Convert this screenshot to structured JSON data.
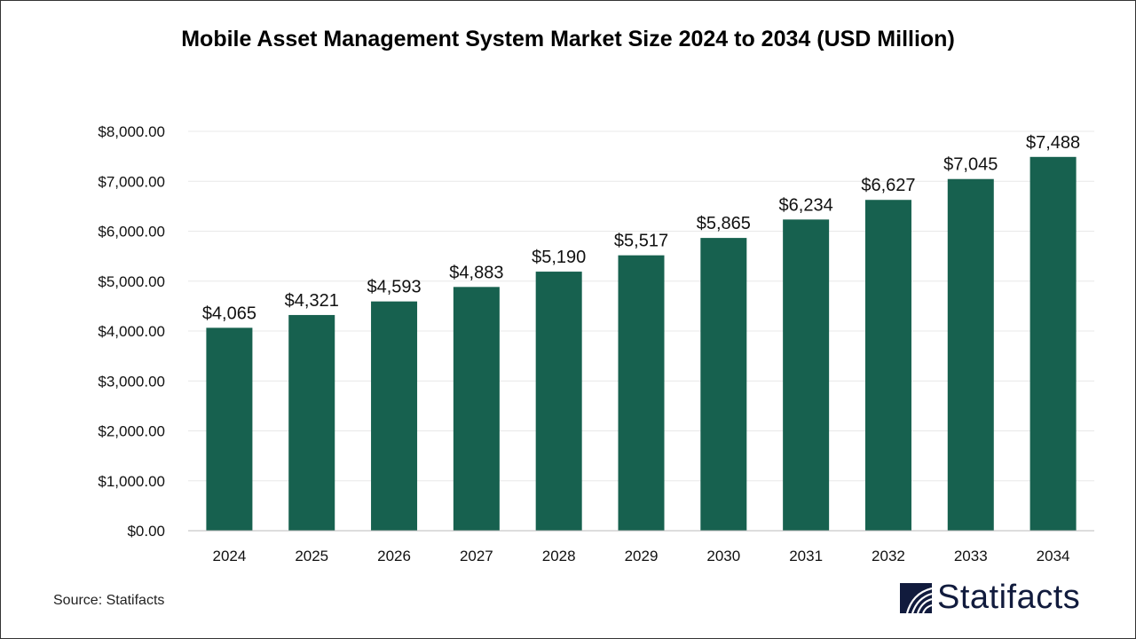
{
  "chart_data": {
    "type": "bar",
    "title": "Mobile Asset Management System Market Size 2024 to 2034 (USD Million)",
    "categories": [
      "2024",
      "2025",
      "2026",
      "2027",
      "2028",
      "2029",
      "2030",
      "2031",
      "2032",
      "2033",
      "2034"
    ],
    "values": [
      4065,
      4321,
      4593,
      4883,
      5190,
      5517,
      5865,
      6234,
      6627,
      7045,
      7488
    ],
    "data_labels": [
      "$4,065",
      "$4,321",
      "$4,593",
      "$4,883",
      "$5,190",
      "$5,517",
      "$5,865",
      "$6,234",
      "$6,627",
      "$7,045",
      "$7,488"
    ],
    "yticks": [
      0,
      1000,
      2000,
      3000,
      4000,
      5000,
      6000,
      7000,
      8000
    ],
    "ytick_labels": [
      "$0.00",
      "$1,000.00",
      "$2,000.00",
      "$3,000.00",
      "$4,000.00",
      "$5,000.00",
      "$6,000.00",
      "$7,000.00",
      "$8,000.00"
    ],
    "ylim": [
      0,
      8000
    ],
    "xlabel": "",
    "ylabel": "",
    "grid": true,
    "bar_color": "#17614f"
  },
  "source": "Source: Statifacts",
  "logo": {
    "text": "Statifacts",
    "color": "#111b3d"
  }
}
